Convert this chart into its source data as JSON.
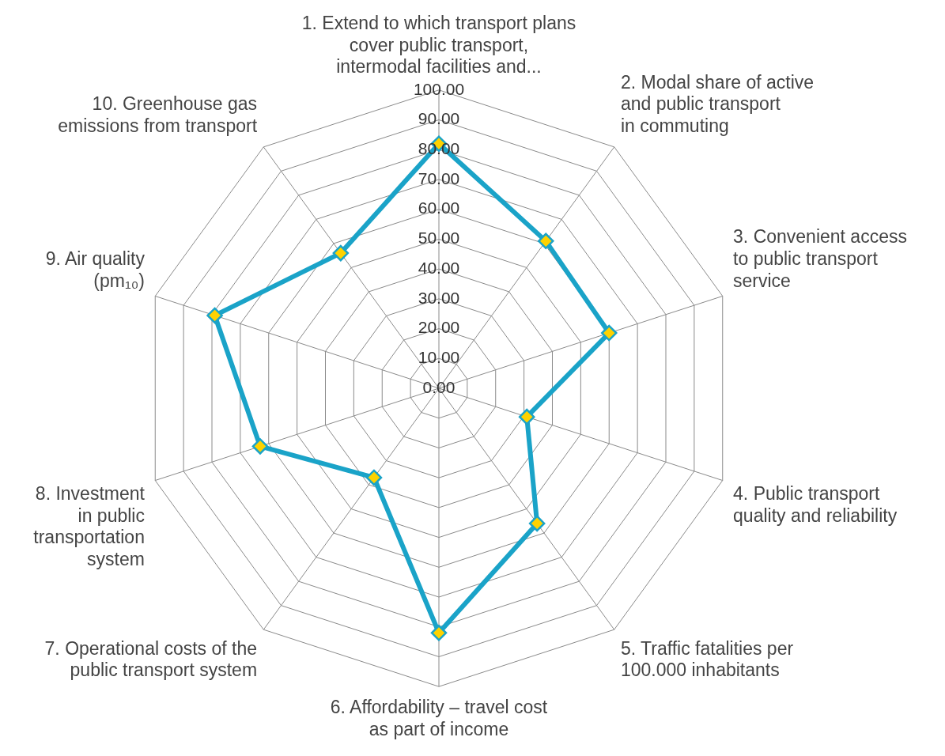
{
  "chart_data": {
    "type": "radar",
    "categories": [
      "1. Extend to which transport plans\ncover public transport,\nintermodal facilities and...",
      "2. Modal share of active\nand public transport\nin commuting",
      "3. Convenient access\nto public transport\nservice",
      "4. Public transport\nquality and reliability",
      "5. Traffic fatalities per\n100.000 inhabitants",
      "6. Affordability – travel cost\nas part of income",
      "7. Operational costs of the\npublic transport system",
      "8. Investment\nin public\ntransportation\nsystem",
      "9. Air quality\n(pm₁₀)",
      "10. Greenhouse gas\nemissions from transport"
    ],
    "series": [
      {
        "color": "#1aa3c8",
        "values": [
          82,
          61,
          60,
          31,
          56,
          82,
          37,
          63,
          79,
          56
        ]
      }
    ],
    "ylim": [
      0,
      100
    ],
    "yticks": [
      {
        "value": 0,
        "label": "0.00"
      },
      {
        "value": 10,
        "label": "10.00"
      },
      {
        "value": 20,
        "label": "20.00"
      },
      {
        "value": 30,
        "label": "30.00"
      },
      {
        "value": 40,
        "label": "40.00"
      },
      {
        "value": 50,
        "label": "50.00"
      },
      {
        "value": 60,
        "label": "60.00"
      },
      {
        "value": 70,
        "label": "70.00"
      },
      {
        "value": 80,
        "label": "80.00"
      },
      {
        "value": 90,
        "label": "90.00"
      },
      {
        "value": 100,
        "label": "100.00"
      }
    ],
    "marker": "diamond",
    "grid": true,
    "legend": false
  }
}
